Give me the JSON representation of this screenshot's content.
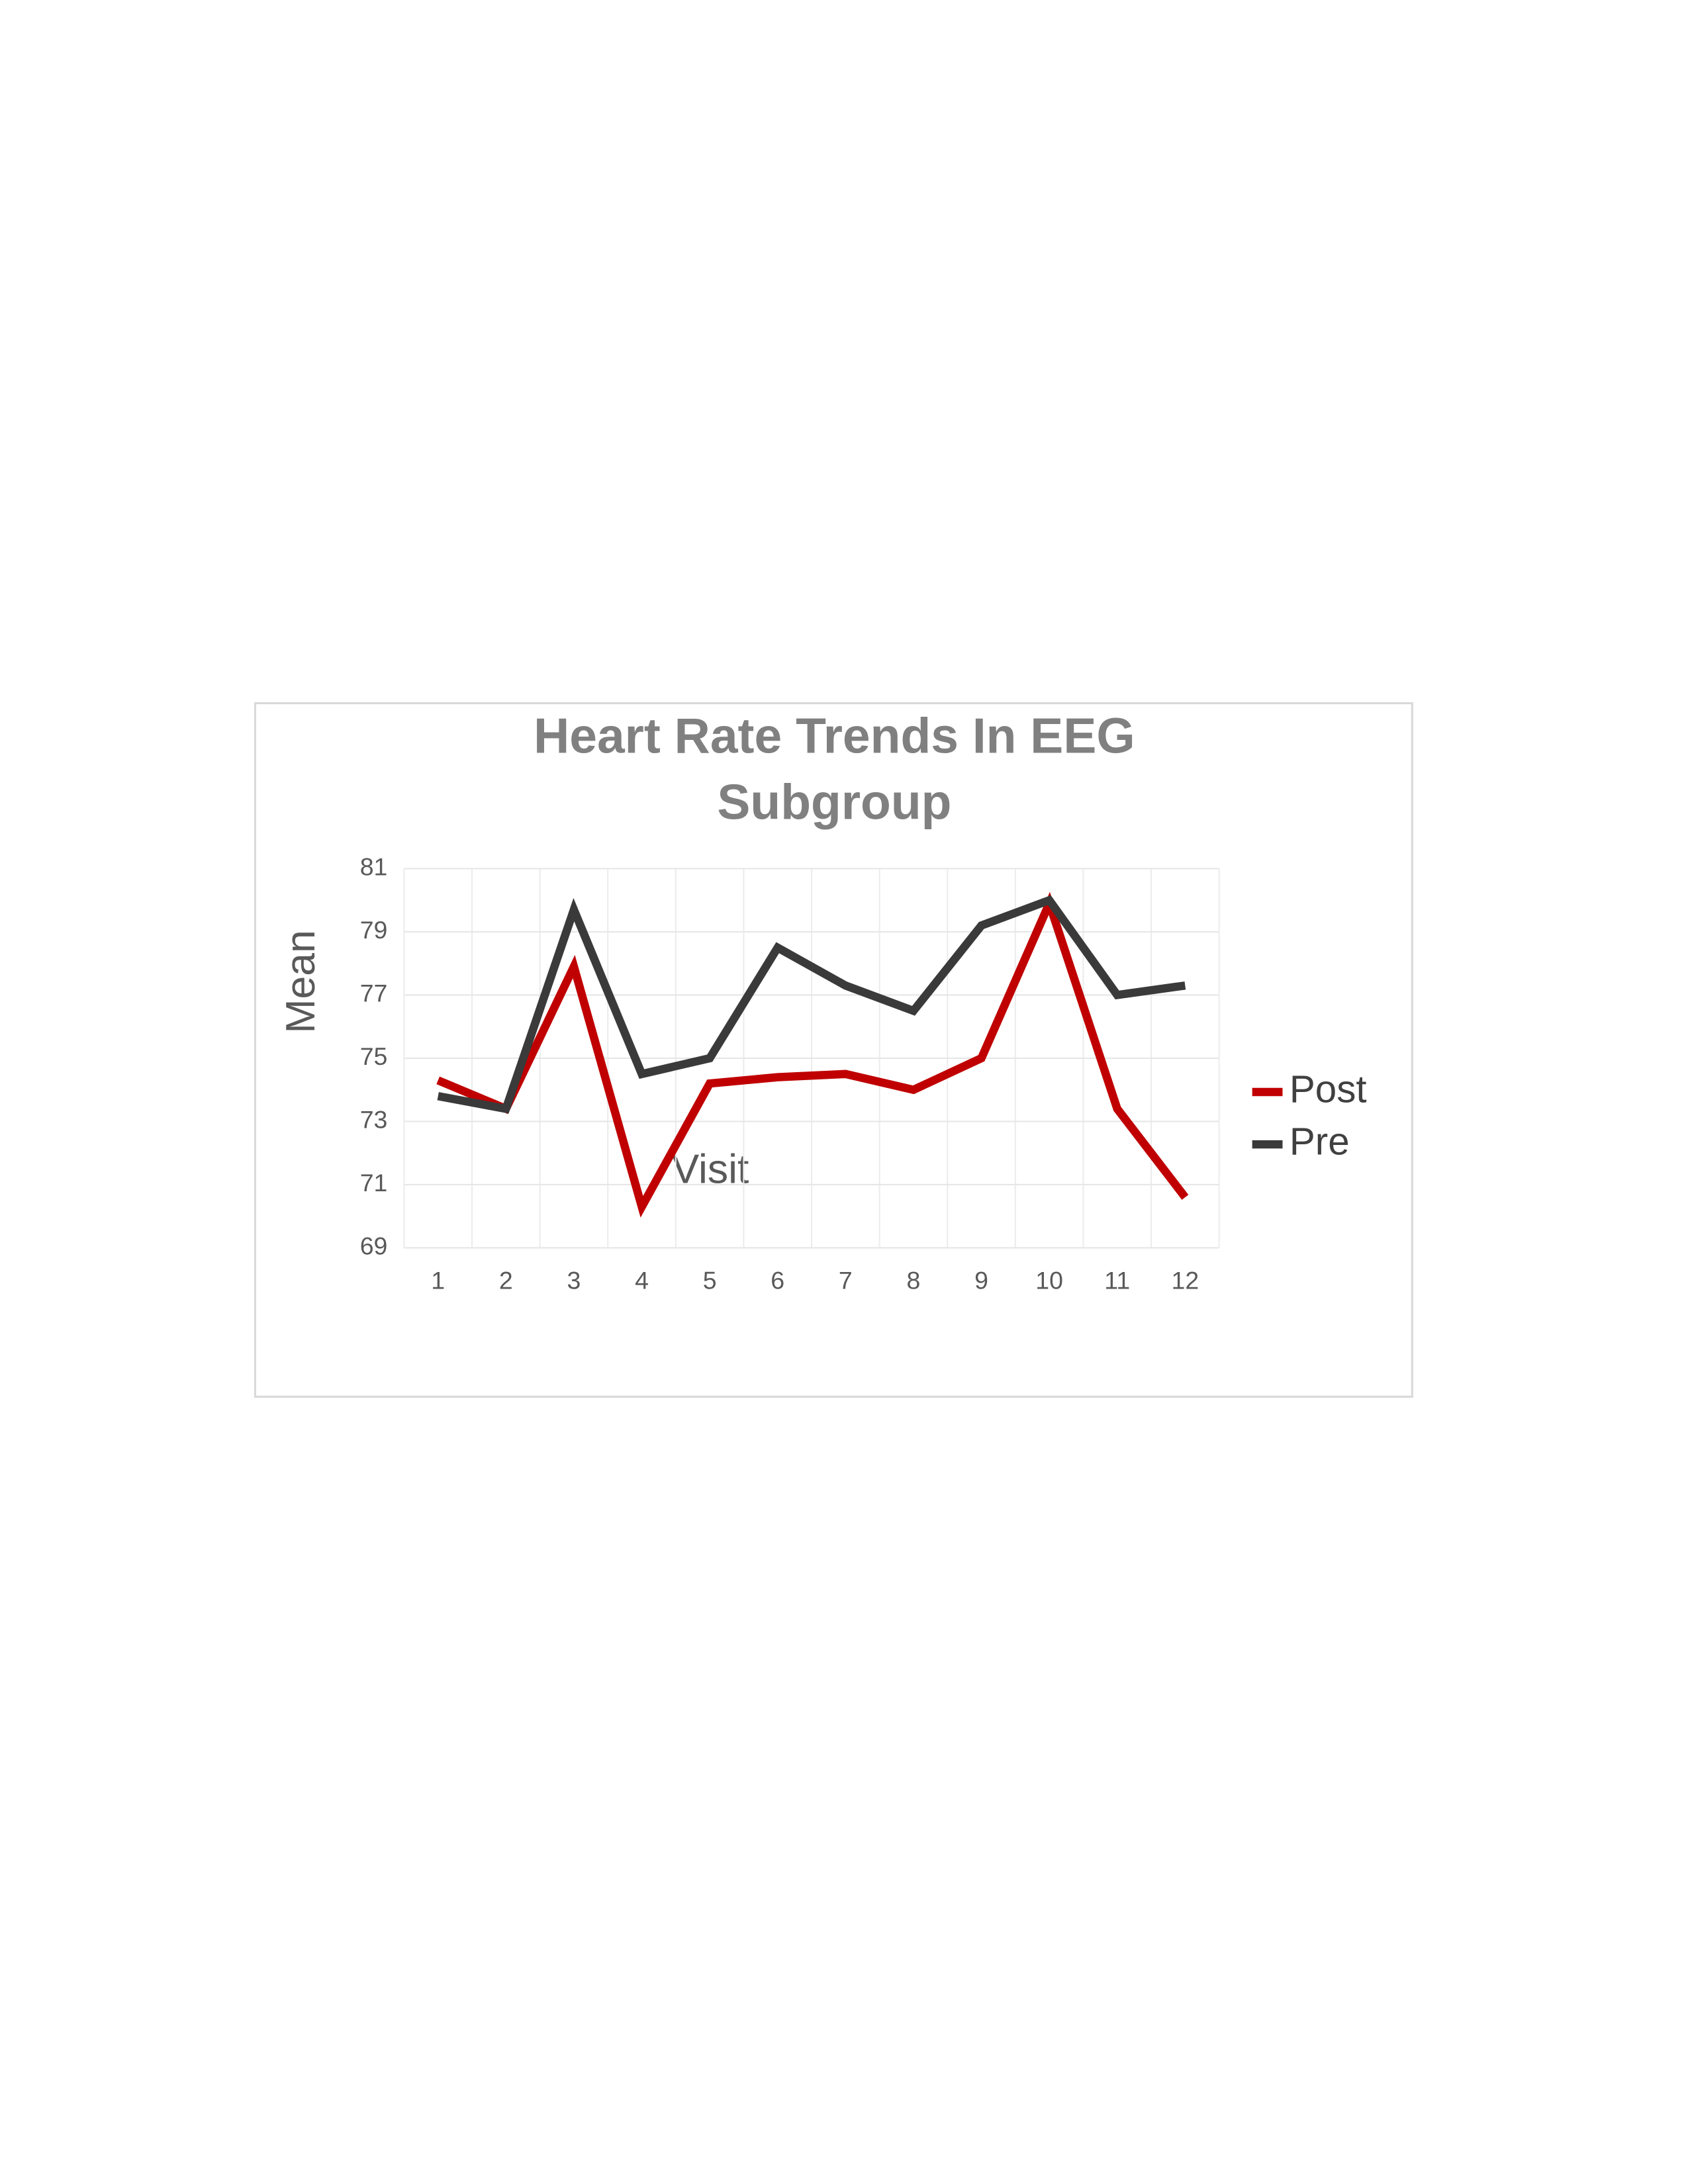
{
  "chart_data": {
    "type": "line",
    "title": "Heart Rate Trends In EEG Subgroup",
    "x_label": "Visit",
    "y_label": "Mean",
    "categories": [
      "1",
      "2",
      "3",
      "4",
      "5",
      "6",
      "7",
      "8",
      "9",
      "10",
      "11",
      "12"
    ],
    "series": [
      {
        "name": "Post",
        "color": "#c00000",
        "values": [
          74.3,
          73.4,
          77.9,
          70.3,
          74.2,
          74.4,
          74.5,
          74.0,
          75.0,
          79.9,
          73.4,
          70.6
        ]
      },
      {
        "name": "Pre",
        "color": "#3a3a3a",
        "values": [
          73.8,
          73.4,
          79.7,
          74.5,
          75.0,
          78.5,
          77.3,
          76.5,
          79.2,
          80.0,
          77.0,
          77.3
        ]
      }
    ],
    "ylim": [
      69,
      81
    ],
    "yticks": [
      69,
      71,
      73,
      75,
      77,
      79,
      81
    ],
    "grid": true,
    "legend": "right"
  }
}
